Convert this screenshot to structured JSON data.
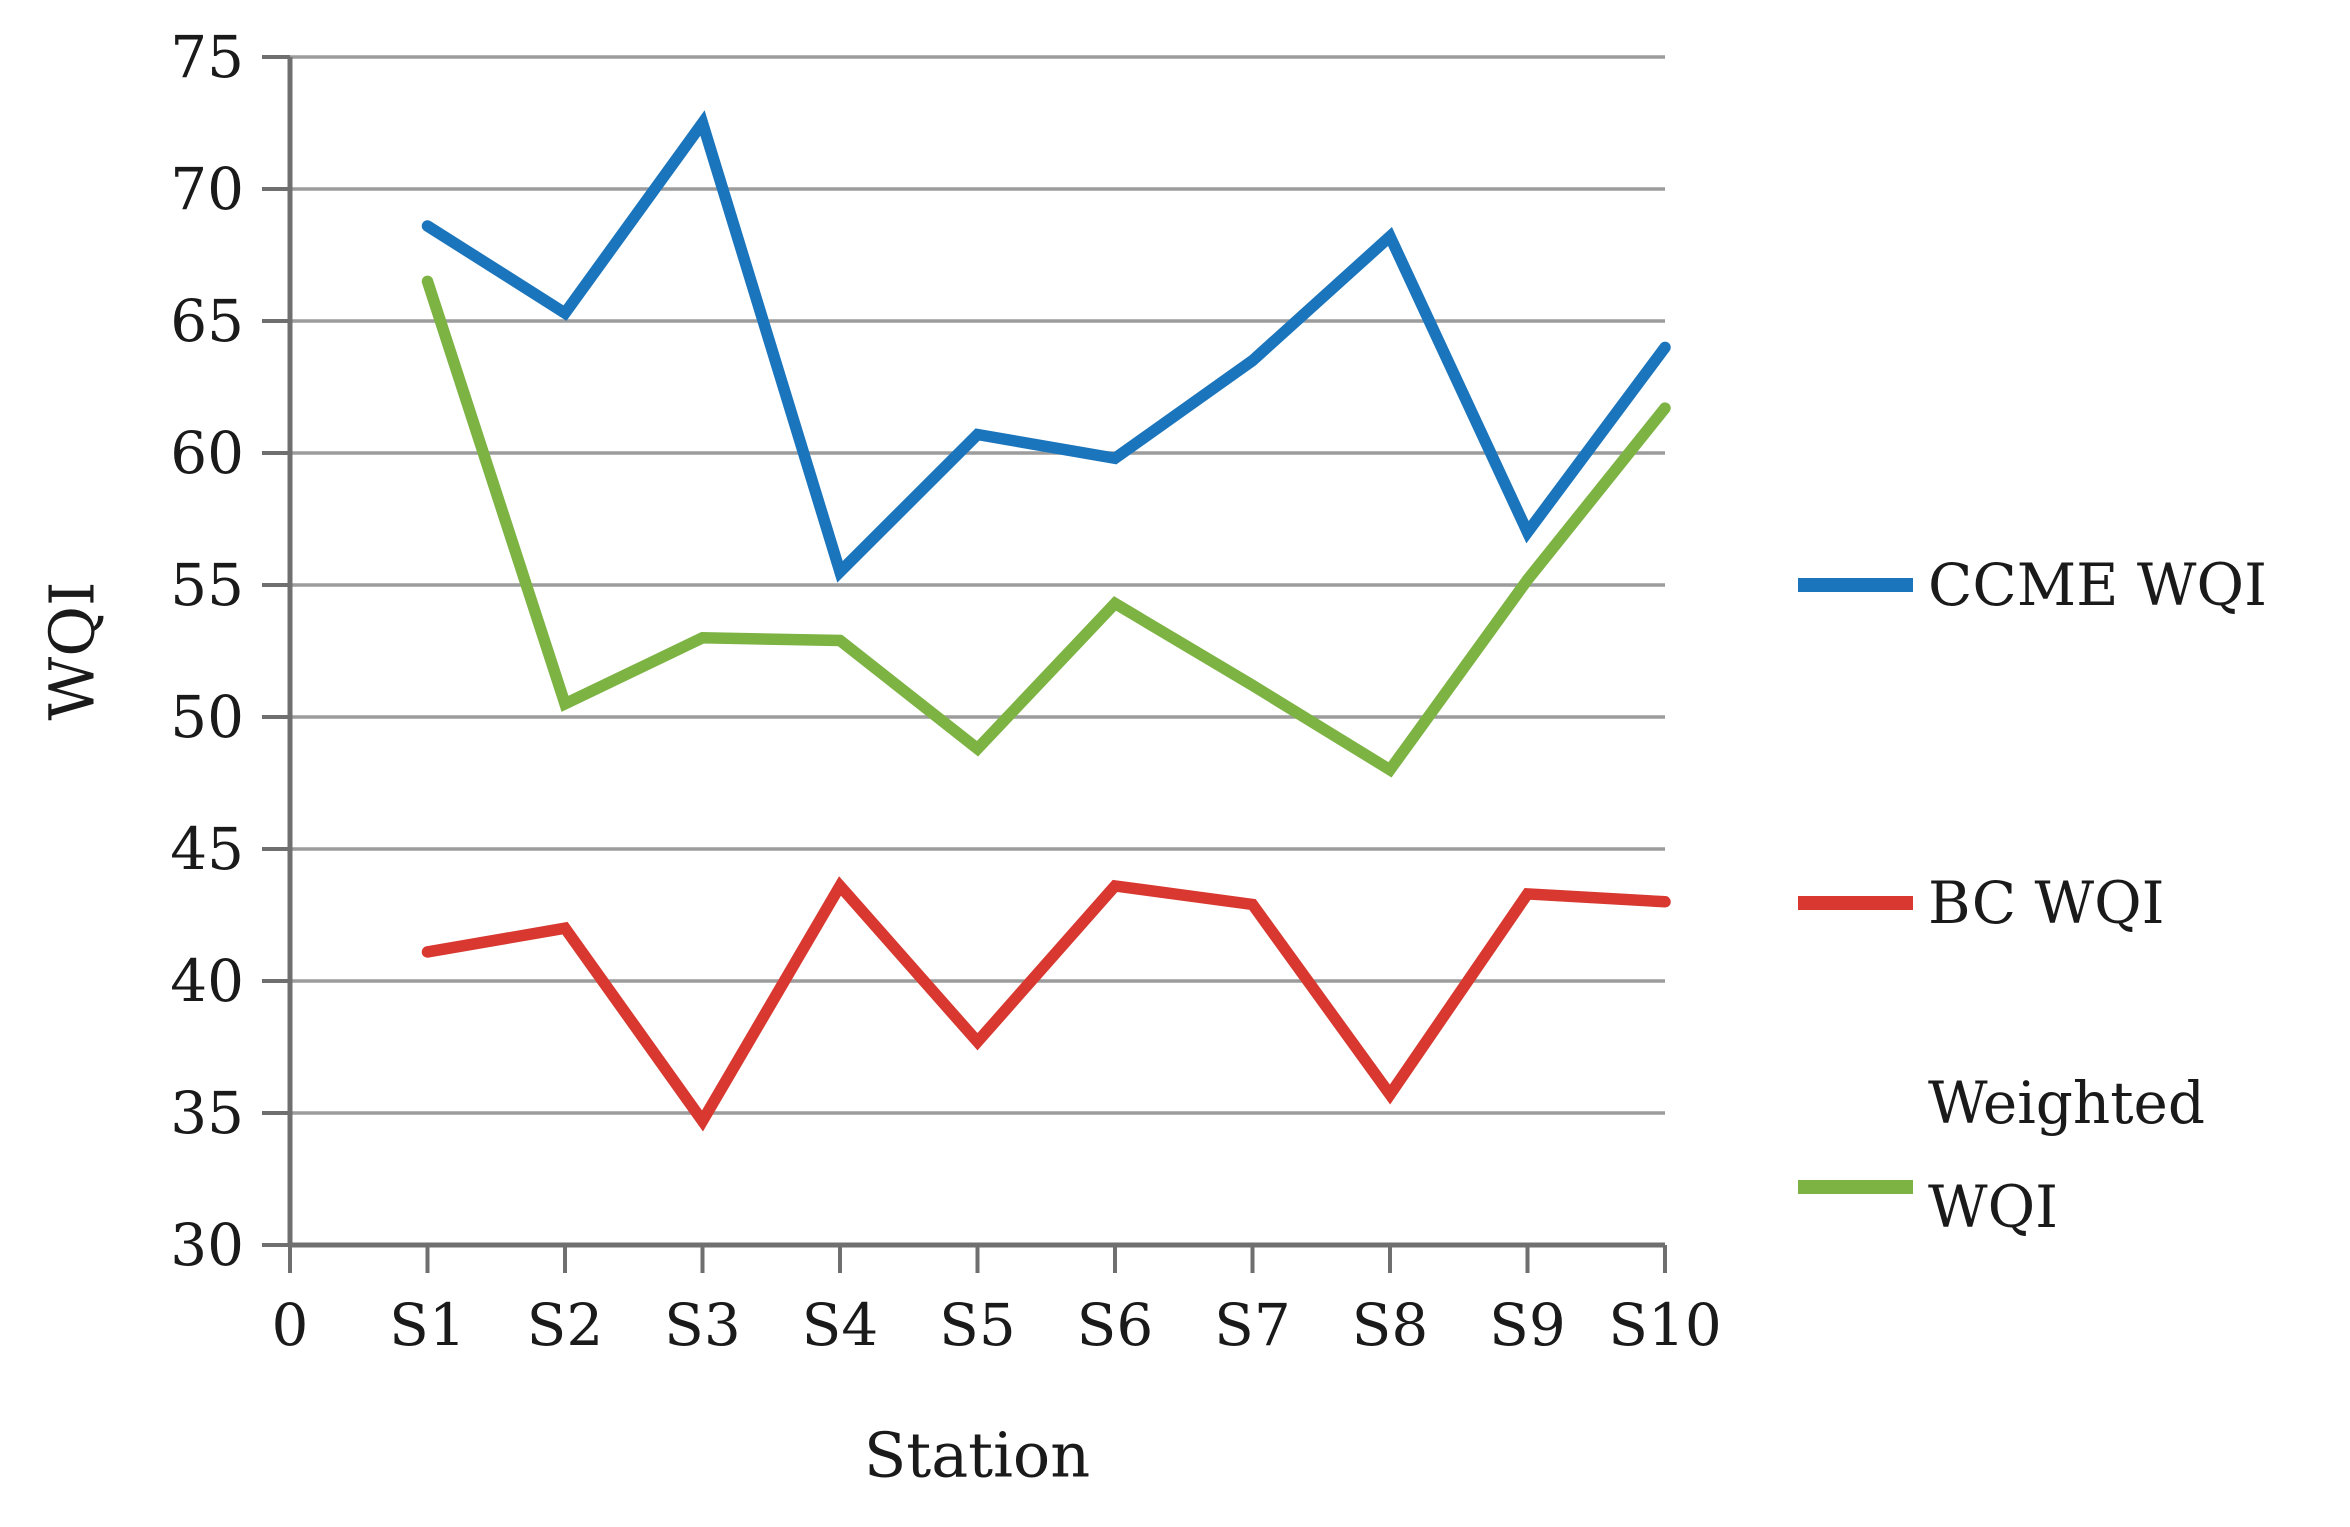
{
  "figure": {
    "y_axis": {
      "title": "WQI",
      "min": 30,
      "max": 75,
      "step": 5,
      "tick_labels": [
        "75",
        "70",
        "65",
        "60",
        "55",
        "50",
        "45",
        "40",
        "35",
        "30"
      ]
    },
    "x_axis": {
      "title": "Station",
      "tick_labels": [
        "0",
        "S1",
        "S2",
        "S3",
        "S4",
        "S5",
        "S6",
        "S7",
        "S8",
        "S9",
        "S10"
      ]
    },
    "colors": {
      "gridline": "#9c9c9c",
      "axis": "#6f6f6f",
      "text": "#1a1a1a",
      "ccme": "#1b75bc",
      "bc": "#d8382f",
      "weighted": "#7cb342"
    }
  },
  "chart_data": {
    "type": "line",
    "title": "",
    "xlabel": "Station",
    "ylabel": "WQI",
    "ylim": [
      30,
      75
    ],
    "grid": true,
    "legend_position": "right",
    "categories": [
      "S1",
      "S2",
      "S3",
      "S4",
      "S5",
      "S6",
      "S7",
      "S8",
      "S9",
      "S10"
    ],
    "series": [
      {
        "name": "CCME WQI",
        "color": "#1b75bc",
        "legend_lines": [
          "CCME WQI"
        ],
        "values": [
          68.6,
          65.3,
          72.5,
          55.5,
          60.7,
          59.8,
          63.5,
          68.2,
          57.0,
          64.0
        ]
      },
      {
        "name": "BC WQI",
        "color": "#d8382f",
        "legend_lines": [
          "BC WQI"
        ],
        "values": [
          41.1,
          42.0,
          34.7,
          43.6,
          37.7,
          43.6,
          42.9,
          35.7,
          43.3,
          43.0
        ]
      },
      {
        "name": "Weighted WQI",
        "color": "#7cb342",
        "legend_lines": [
          "Weighted",
          "WQI"
        ],
        "values": [
          66.5,
          50.5,
          53.0,
          52.9,
          48.8,
          54.3,
          51.2,
          48.0,
          55.2,
          61.7
        ]
      }
    ]
  }
}
